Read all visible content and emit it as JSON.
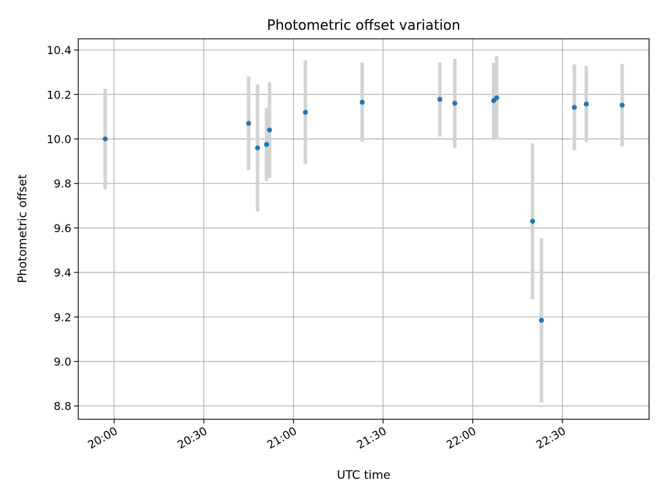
{
  "chart_data": {
    "type": "scatter",
    "title": "Photometric offset variation",
    "xlabel": "UTC time",
    "ylabel": "Photometric offset",
    "xlim": [
      "19:48",
      "22:59"
    ],
    "ylim": [
      8.74,
      10.45
    ],
    "grid": true,
    "x_ticks": [
      "20:00",
      "20:30",
      "21:00",
      "21:30",
      "22:00",
      "22:30"
    ],
    "y_ticks": [
      8.8,
      9.0,
      9.2,
      9.4,
      9.6,
      9.8,
      10.0,
      10.2,
      10.4
    ],
    "y_tick_labels": [
      "8.8",
      "9.0",
      "9.2",
      "9.4",
      "9.6",
      "9.8",
      "10.0",
      "10.2",
      "10.4"
    ],
    "marker_color": "#1f77b4",
    "errorbar_color": "#d3d3d3",
    "points": [
      {
        "x": "19:57",
        "y": 10.0,
        "err": 0.225
      },
      {
        "x": "20:45",
        "y": 10.07,
        "err": 0.21
      },
      {
        "x": "20:48",
        "y": 9.96,
        "err": 0.285
      },
      {
        "x": "20:51",
        "y": 9.975,
        "err": 0.165
      },
      {
        "x": "20:52",
        "y": 10.04,
        "err": 0.215
      },
      {
        "x": "21:04",
        "y": 10.12,
        "err": 0.233
      },
      {
        "x": "21:23",
        "y": 10.165,
        "err": 0.178
      },
      {
        "x": "21:49",
        "y": 10.178,
        "err": 0.167
      },
      {
        "x": "21:54",
        "y": 10.16,
        "err": 0.2
      },
      {
        "x": "22:07",
        "y": 10.172,
        "err": 0.17
      },
      {
        "x": "22:08",
        "y": 10.185,
        "err": 0.187
      },
      {
        "x": "22:20",
        "y": 9.63,
        "err": 0.35
      },
      {
        "x": "22:23",
        "y": 9.185,
        "err": 0.37
      },
      {
        "x": "22:34",
        "y": 10.142,
        "err": 0.193
      },
      {
        "x": "22:38",
        "y": 10.157,
        "err": 0.172
      },
      {
        "x": "22:50",
        "y": 10.152,
        "err": 0.185
      }
    ]
  }
}
